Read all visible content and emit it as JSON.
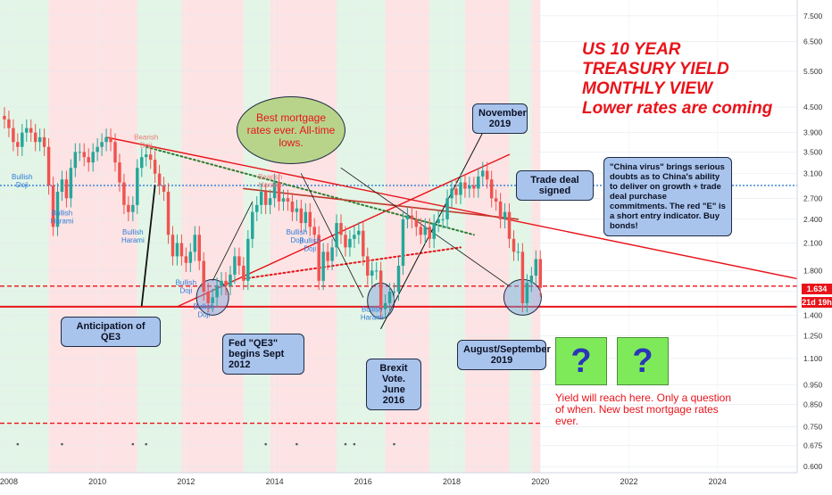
{
  "chart_data": {
    "type": "candlestick",
    "title_lines": [
      "US 10 YEAR",
      "TREASURY YIELD",
      "MONTHLY VIEW",
      "Lower rates are coming"
    ],
    "x_ticks": [
      "2008",
      "2010",
      "2012",
      "2014",
      "2016",
      "2018",
      "2020",
      "2022",
      "2024"
    ],
    "x_range": [
      2007.8,
      2025.8
    ],
    "y_scale": "log",
    "y_ticks": [
      "0.600",
      "0.675",
      "0.750",
      "0.850",
      "0.950",
      "1.100",
      "1.250",
      "1.400",
      "1.600",
      "1.800",
      "2.100",
      "2.400",
      "2.700",
      "3.100",
      "3.500",
      "3.900",
      "4.500",
      "5.500",
      "6.500",
      "7.500"
    ],
    "y_range": [
      0.58,
      8.2
    ],
    "candles": [
      {
        "t": 2007.9,
        "v": 4.2
      },
      {
        "t": 2008.0,
        "v": 4.0
      },
      {
        "t": 2008.1,
        "v": 3.7
      },
      {
        "t": 2008.2,
        "v": 3.6
      },
      {
        "t": 2008.3,
        "v": 3.9
      },
      {
        "t": 2008.4,
        "v": 4.0
      },
      {
        "t": 2008.5,
        "v": 3.9
      },
      {
        "t": 2008.6,
        "v": 3.7
      },
      {
        "t": 2008.7,
        "v": 3.8
      },
      {
        "t": 2008.8,
        "v": 3.6
      },
      {
        "t": 2008.9,
        "v": 2.9
      },
      {
        "t": 2009.0,
        "v": 2.3
      },
      {
        "t": 2009.1,
        "v": 2.8
      },
      {
        "t": 2009.2,
        "v": 3.0
      },
      {
        "t": 2009.3,
        "v": 2.7
      },
      {
        "t": 2009.4,
        "v": 3.2
      },
      {
        "t": 2009.5,
        "v": 3.5
      },
      {
        "t": 2009.6,
        "v": 3.5
      },
      {
        "t": 2009.7,
        "v": 3.4
      },
      {
        "t": 2009.8,
        "v": 3.3
      },
      {
        "t": 2009.9,
        "v": 3.5
      },
      {
        "t": 2010.0,
        "v": 3.6
      },
      {
        "t": 2010.1,
        "v": 3.7
      },
      {
        "t": 2010.2,
        "v": 3.8
      },
      {
        "t": 2010.3,
        "v": 3.7
      },
      {
        "t": 2010.4,
        "v": 3.3
      },
      {
        "t": 2010.5,
        "v": 2.95
      },
      {
        "t": 2010.6,
        "v": 2.6
      },
      {
        "t": 2010.7,
        "v": 2.5
      },
      {
        "t": 2010.8,
        "v": 2.6
      },
      {
        "t": 2010.9,
        "v": 3.2
      },
      {
        "t": 2011.0,
        "v": 3.4
      },
      {
        "t": 2011.1,
        "v": 3.45
      },
      {
        "t": 2011.2,
        "v": 3.35
      },
      {
        "t": 2011.3,
        "v": 3.1
      },
      {
        "t": 2011.4,
        "v": 2.9
      },
      {
        "t": 2011.5,
        "v": 2.8
      },
      {
        "t": 2011.6,
        "v": 2.2
      },
      {
        "t": 2011.7,
        "v": 1.95
      },
      {
        "t": 2011.8,
        "v": 2.1
      },
      {
        "t": 2011.9,
        "v": 1.95
      },
      {
        "t": 2012.0,
        "v": 1.88
      },
      {
        "t": 2012.1,
        "v": 2.0
      },
      {
        "t": 2012.2,
        "v": 2.2
      },
      {
        "t": 2012.3,
        "v": 1.9
      },
      {
        "t": 2012.4,
        "v": 1.6
      },
      {
        "t": 2012.5,
        "v": 1.5
      },
      {
        "t": 2012.6,
        "v": 1.55
      },
      {
        "t": 2012.7,
        "v": 1.65
      },
      {
        "t": 2012.8,
        "v": 1.7
      },
      {
        "t": 2012.9,
        "v": 1.65
      },
      {
        "t": 2013.0,
        "v": 1.76
      },
      {
        "t": 2013.1,
        "v": 1.95
      },
      {
        "t": 2013.2,
        "v": 1.85
      },
      {
        "t": 2013.3,
        "v": 1.7
      },
      {
        "t": 2013.4,
        "v": 2.15
      },
      {
        "t": 2013.5,
        "v": 2.5
      },
      {
        "t": 2013.6,
        "v": 2.6
      },
      {
        "t": 2013.7,
        "v": 2.8
      },
      {
        "t": 2013.8,
        "v": 2.6
      },
      {
        "t": 2013.9,
        "v": 2.7
      },
      {
        "t": 2014.0,
        "v": 2.95
      },
      {
        "t": 2014.1,
        "v": 2.65
      },
      {
        "t": 2014.2,
        "v": 2.7
      },
      {
        "t": 2014.3,
        "v": 2.65
      },
      {
        "t": 2014.4,
        "v": 2.5
      },
      {
        "t": 2014.5,
        "v": 2.55
      },
      {
        "t": 2014.6,
        "v": 2.35
      },
      {
        "t": 2014.7,
        "v": 2.5
      },
      {
        "t": 2014.8,
        "v": 2.3
      },
      {
        "t": 2014.9,
        "v": 2.2
      },
      {
        "t": 2015.0,
        "v": 1.7
      },
      {
        "t": 2015.1,
        "v": 2.0
      },
      {
        "t": 2015.2,
        "v": 1.9
      },
      {
        "t": 2015.3,
        "v": 2.05
      },
      {
        "t": 2015.4,
        "v": 2.35
      },
      {
        "t": 2015.5,
        "v": 2.2
      },
      {
        "t": 2015.6,
        "v": 2.05
      },
      {
        "t": 2015.7,
        "v": 2.15
      },
      {
        "t": 2015.8,
        "v": 2.2
      },
      {
        "t": 2015.9,
        "v": 2.25
      },
      {
        "t": 2016.0,
        "v": 1.95
      },
      {
        "t": 2016.1,
        "v": 1.75
      },
      {
        "t": 2016.2,
        "v": 1.8
      },
      {
        "t": 2016.3,
        "v": 1.8
      },
      {
        "t": 2016.4,
        "v": 1.45
      },
      {
        "t": 2016.5,
        "v": 1.5
      },
      {
        "t": 2016.6,
        "v": 1.6
      },
      {
        "t": 2016.7,
        "v": 1.6
      },
      {
        "t": 2016.8,
        "v": 1.85
      },
      {
        "t": 2016.9,
        "v": 2.4
      },
      {
        "t": 2017.0,
        "v": 2.45
      },
      {
        "t": 2017.1,
        "v": 2.4
      },
      {
        "t": 2017.2,
        "v": 2.3
      },
      {
        "t": 2017.3,
        "v": 2.2
      },
      {
        "t": 2017.4,
        "v": 2.3
      },
      {
        "t": 2017.5,
        "v": 2.15
      },
      {
        "t": 2017.6,
        "v": 2.35
      },
      {
        "t": 2017.7,
        "v": 2.4
      },
      {
        "t": 2017.8,
        "v": 2.4
      },
      {
        "t": 2017.9,
        "v": 2.7
      },
      {
        "t": 2018.0,
        "v": 2.85
      },
      {
        "t": 2018.1,
        "v": 2.75
      },
      {
        "t": 2018.2,
        "v": 2.95
      },
      {
        "t": 2018.3,
        "v": 2.85
      },
      {
        "t": 2018.4,
        "v": 2.9
      },
      {
        "t": 2018.5,
        "v": 2.85
      },
      {
        "t": 2018.6,
        "v": 3.05
      },
      {
        "t": 2018.7,
        "v": 3.15
      },
      {
        "t": 2018.8,
        "v": 3.0
      },
      {
        "t": 2018.9,
        "v": 2.7
      },
      {
        "t": 2019.0,
        "v": 2.65
      },
      {
        "t": 2019.1,
        "v": 2.4
      },
      {
        "t": 2019.2,
        "v": 2.5
      },
      {
        "t": 2019.3,
        "v": 2.15
      },
      {
        "t": 2019.4,
        "v": 2.0
      },
      {
        "t": 2019.5,
        "v": 2.0
      },
      {
        "t": 2019.6,
        "v": 1.5
      },
      {
        "t": 2019.7,
        "v": 1.68
      },
      {
        "t": 2019.8,
        "v": 1.75
      },
      {
        "t": 2019.9,
        "v": 1.92
      },
      {
        "t": 2020.0,
        "v": 1.634
      }
    ],
    "current_price": "1.634",
    "countdown": "21d 19h",
    "candle_labels": [
      {
        "text": "Bullish Doji",
        "t": 2008.3,
        "v": 3.0
      },
      {
        "text": "Bullish Harami",
        "t": 2009.2,
        "v": 2.45
      },
      {
        "text": "Bullish Harami",
        "t": 2010.8,
        "v": 2.2
      },
      {
        "text": "Bearish Doji",
        "t": 2011.1,
        "v": 3.75
      },
      {
        "text": "Bullish Doji",
        "t": 2012.0,
        "v": 1.66
      },
      {
        "text": "Bullish Doji",
        "t": 2012.4,
        "v": 1.45
      },
      {
        "text": "Bearish Harami",
        "t": 2013.9,
        "v": 3.0
      },
      {
        "text": "Bullish Doji",
        "t": 2014.5,
        "v": 2.2
      },
      {
        "text": "Bullish Doji",
        "t": 2014.8,
        "v": 2.1
      },
      {
        "text": "Bullish Harami",
        "t": 2016.2,
        "v": 1.43
      }
    ],
    "horizontal_lines": [
      {
        "v": 2.9,
        "color": "#2f7bd8",
        "style": "dotted"
      },
      {
        "v": 1.65,
        "color": "#e8141a",
        "style": "dashed"
      },
      {
        "v": 1.47,
        "color": "#e8141a",
        "style": "solid"
      },
      {
        "v": 0.765,
        "color": "#e8141a",
        "style": "dashed"
      }
    ]
  },
  "annotations": {
    "best_rates": "Best mortgage rates ever. All-time lows.",
    "november": "November 2019",
    "trade_deal": "Trade deal signed",
    "china_virus": "\"China virus\" brings serious doubts as to China's ability to deliver on growth + trade deal purchase commitments. The red \"E\" is a short entry indicator. Buy bonds!",
    "qe3_anticipation": "Anticipation of QE3",
    "fed_qe3": "Fed \"QE3\" begins Sept 2012",
    "brexit": "Brexit Vote. June 2016",
    "aug_sep": "August/September 2019",
    "question_mark": "?",
    "yield_note": "Yield will reach here. Only a question of when. New best mortgage rates ever."
  },
  "colors": {
    "bull": "#26a69a",
    "bear": "#ef5350",
    "red_zone": "#fde3e3",
    "green_zone": "#e3f5e6",
    "accent_red": "#e8141a"
  }
}
